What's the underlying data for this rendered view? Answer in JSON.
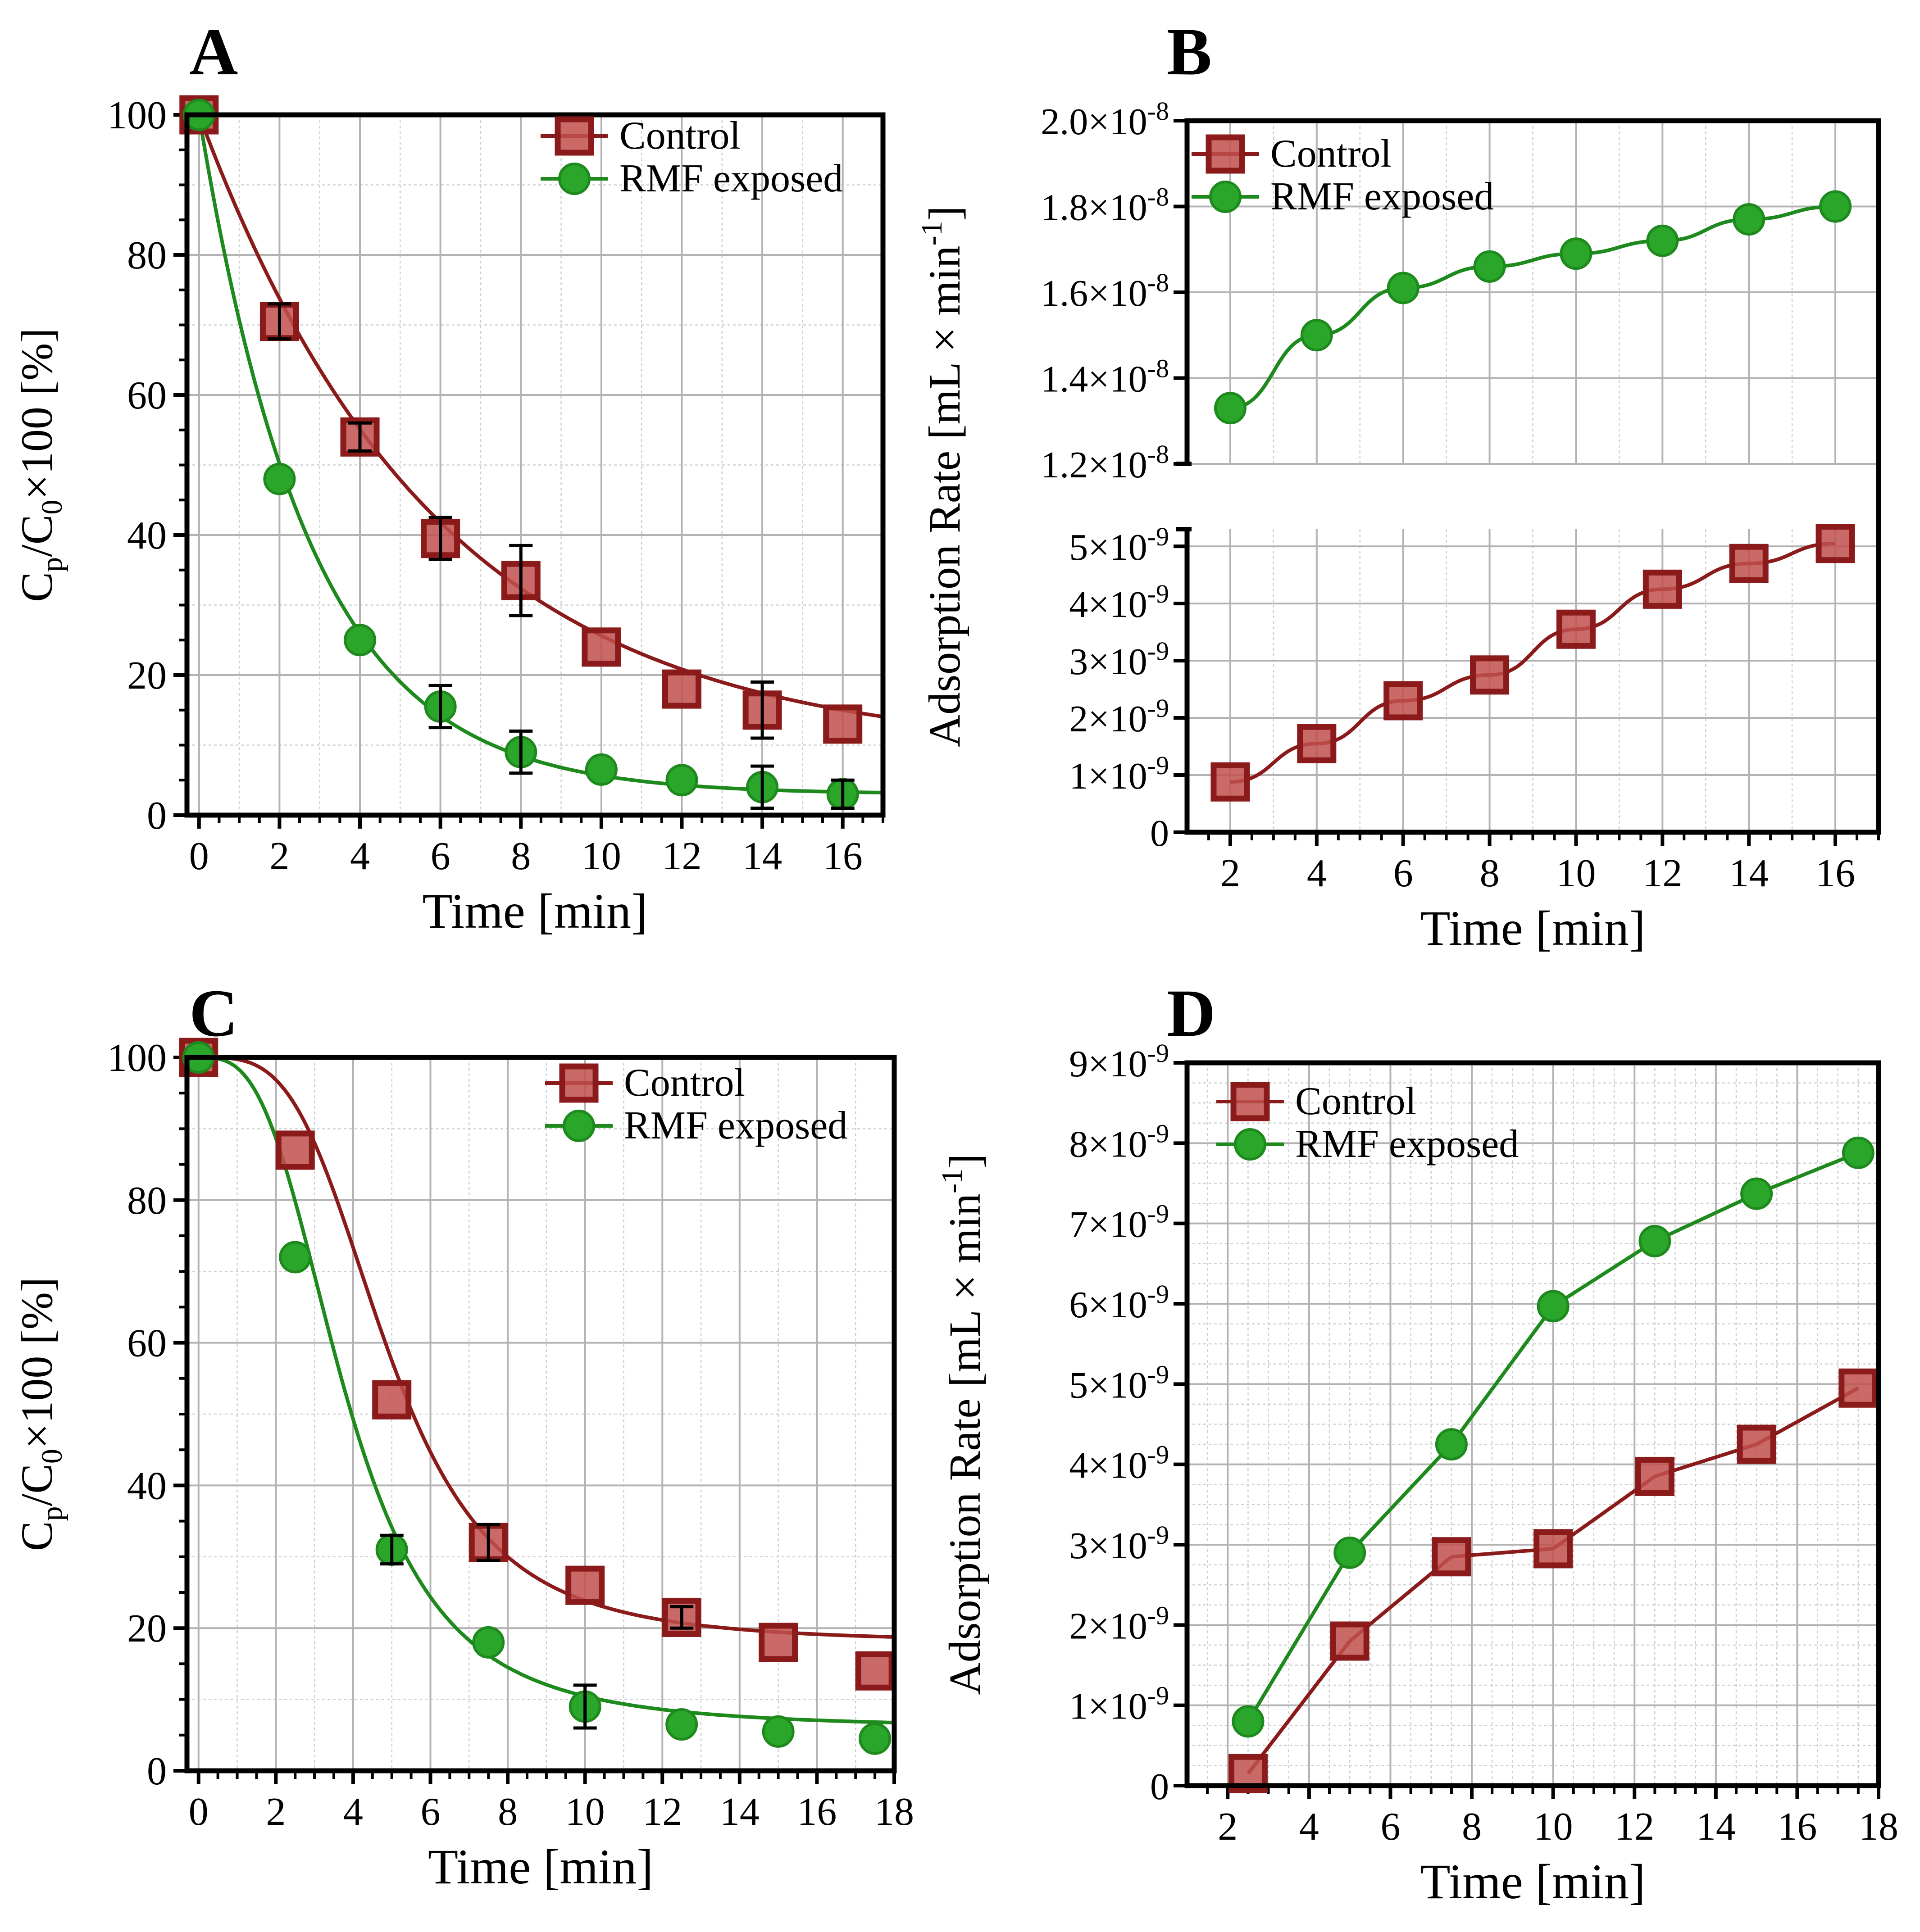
{
  "colors": {
    "control": "#8b1a1a",
    "control_fill": "#c0504d",
    "rmf": "#1e8a1e",
    "rmf_fill": "#2aa62a"
  },
  "chart_data": [
    {
      "panel": "A",
      "type": "line",
      "xlabel": "Time [min]",
      "ylabel": {
        "c": "C",
        "p": "p",
        "slash": "/C",
        "zero": "0",
        "rest": "×100 [%]"
      },
      "xlim": [
        -0.3,
        17
      ],
      "ylim": [
        0,
        100
      ],
      "xticks": [
        0,
        2,
        4,
        6,
        8,
        10,
        12,
        14,
        16
      ],
      "yticks": [
        0,
        20,
        40,
        60,
        80,
        100
      ],
      "legend": [
        "Control",
        "RMF exposed"
      ],
      "series": [
        {
          "name": "Control",
          "marker": "square",
          "x": [
            0,
            2,
            4,
            6,
            8,
            10,
            12,
            14,
            16
          ],
          "y": [
            100,
            70.5,
            54,
            39.5,
            33.5,
            24,
            18,
            15,
            13
          ],
          "err": [
            0,
            2.5,
            2,
            3,
            5,
            0,
            0,
            4,
            0
          ],
          "fit": {
            "a": 91,
            "k": 0.17,
            "c": 9
          }
        },
        {
          "name": "RMF exposed",
          "marker": "circle",
          "x": [
            0,
            2,
            4,
            6,
            8,
            10,
            12,
            14,
            16
          ],
          "y": [
            100,
            48,
            25,
            15.5,
            9,
            6.5,
            5,
            4,
            3
          ],
          "err": [
            0,
            0,
            0,
            3,
            3,
            0,
            0,
            3,
            2
          ],
          "fit": {
            "a": 97,
            "k": 0.36,
            "c": 3
          }
        }
      ]
    },
    {
      "panel": "B",
      "type": "line",
      "xlabel": "Time [min]",
      "ylabel": "Adsorption Rate [mL × min",
      "ylabel_sup": "-1",
      "ylabel_end": "]",
      "xlim": [
        1,
        17
      ],
      "xticks": [
        2,
        4,
        6,
        8,
        10,
        12,
        14,
        16
      ],
      "upper_ylim": [
        1.2e-08,
        2e-08
      ],
      "upper_yticks": [
        {
          "m": "1.2",
          "e": "-8"
        },
        {
          "m": "1.4",
          "e": "-8"
        },
        {
          "m": "1.6",
          "e": "-8"
        },
        {
          "m": "1.8",
          "e": "-8"
        },
        {
          "m": "2.0",
          "e": "-8"
        }
      ],
      "lower_ylim": [
        0,
        5.3e-09
      ],
      "lower_yticks": [
        {
          "m": "0",
          "e": ""
        },
        {
          "m": "1",
          "e": "-9"
        },
        {
          "m": "2",
          "e": "-9"
        },
        {
          "m": "3",
          "e": "-9"
        },
        {
          "m": "4",
          "e": "-9"
        },
        {
          "m": "5",
          "e": "-9"
        }
      ],
      "legend": [
        "Control",
        "RMF exposed"
      ],
      "series": [
        {
          "name": "Control",
          "marker": "square",
          "x": [
            2,
            4,
            6,
            8,
            10,
            12,
            14,
            16
          ],
          "y": [
            8.8e-10,
            1.55e-09,
            2.3e-09,
            2.75e-09,
            3.55e-09,
            4.25e-09,
            4.7e-09,
            5.05e-09
          ]
        },
        {
          "name": "RMF exposed",
          "marker": "circle",
          "x": [
            2,
            4,
            6,
            8,
            10,
            12,
            14,
            16
          ],
          "y": [
            1.33e-08,
            1.5e-08,
            1.61e-08,
            1.66e-08,
            1.69e-08,
            1.72e-08,
            1.77e-08,
            1.8e-08
          ]
        }
      ]
    },
    {
      "panel": "C",
      "type": "line",
      "xlabel": "Time [min]",
      "ylabel": {
        "c": "C",
        "p": "p",
        "slash": "/C",
        "zero": "0",
        "rest": "×100 [%]"
      },
      "xlim": [
        -0.3,
        18
      ],
      "ylim": [
        0,
        100
      ],
      "xticks": [
        0,
        2,
        4,
        6,
        8,
        10,
        12,
        14,
        16,
        18
      ],
      "yticks": [
        0,
        20,
        40,
        60,
        80,
        100
      ],
      "legend": [
        "Control",
        "RMF exposed"
      ],
      "series": [
        {
          "name": "Control",
          "marker": "square",
          "x": [
            0,
            2.5,
            5,
            7.5,
            10,
            12.5,
            15,
            17.5
          ],
          "y": [
            100,
            87,
            52,
            32,
            26,
            21.5,
            18,
            14
          ],
          "err": [
            0,
            0,
            0,
            2.5,
            0,
            1.5,
            0,
            0
          ],
          "fit": {
            "bottom": 18,
            "top": 100,
            "x50": 4.9,
            "slope": 3.6
          }
        },
        {
          "name": "RMF exposed",
          "marker": "circle",
          "x": [
            0,
            2.5,
            5,
            7.5,
            10,
            12.5,
            15,
            17.5
          ],
          "y": [
            100,
            72,
            31,
            18,
            9,
            6.5,
            5.5,
            4.5
          ],
          "err": [
            0,
            0,
            2,
            0,
            3,
            0,
            0,
            0
          ],
          "fit": {
            "bottom": 6,
            "top": 100,
            "x50": 3.8,
            "slope": 3.1
          }
        }
      ]
    },
    {
      "panel": "D",
      "type": "line",
      "xlabel": "Time [min]",
      "ylabel": "Adsorption Rate [mL × min",
      "ylabel_sup": "-1",
      "ylabel_end": "]",
      "xlim": [
        1,
        18
      ],
      "ylim": [
        0,
        9e-09
      ],
      "xticks": [
        2,
        4,
        6,
        8,
        10,
        12,
        14,
        16,
        18
      ],
      "yticks": [
        {
          "m": "0",
          "e": ""
        },
        {
          "m": "1",
          "e": "-9"
        },
        {
          "m": "2",
          "e": "-9"
        },
        {
          "m": "3",
          "e": "-9"
        },
        {
          "m": "4",
          "e": "-9"
        },
        {
          "m": "5",
          "e": "-9"
        },
        {
          "m": "6",
          "e": "-9"
        },
        {
          "m": "7",
          "e": "-9"
        },
        {
          "m": "8",
          "e": "-9"
        },
        {
          "m": "9",
          "e": "-9"
        }
      ],
      "legend": [
        "Control",
        "RMF exposed"
      ],
      "series": [
        {
          "name": "Control",
          "marker": "square",
          "x": [
            2.5,
            5,
            7.5,
            10,
            12.5,
            15,
            17.5
          ],
          "y": [
            1.5e-10,
            1.8e-09,
            2.85e-09,
            2.95e-09,
            3.85e-09,
            4.25e-09,
            4.95e-09
          ]
        },
        {
          "name": "RMF exposed",
          "marker": "circle",
          "x": [
            2.5,
            5,
            7.5,
            10,
            12.5,
            15,
            17.5
          ],
          "y": [
            8e-10,
            2.9e-09,
            4.25e-09,
            5.97e-09,
            6.78e-09,
            7.37e-09,
            7.88e-09
          ]
        }
      ]
    }
  ]
}
